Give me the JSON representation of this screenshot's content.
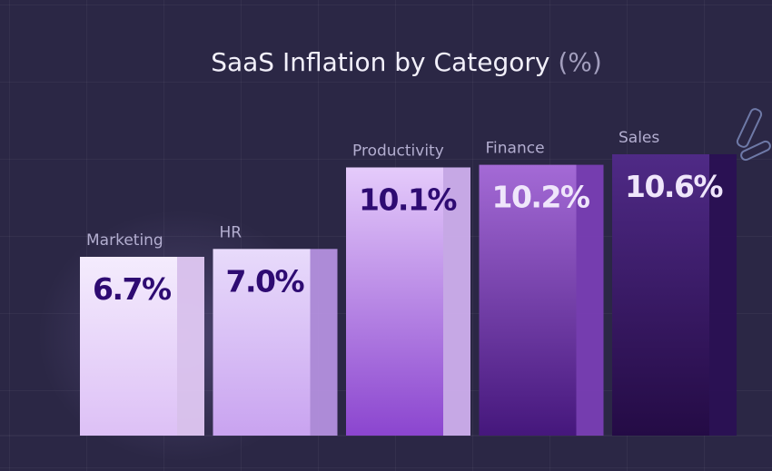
{
  "title": "SaaS Inflation by Category",
  "title_unit": "(%)",
  "chart_data": {
    "type": "bar",
    "title": "SaaS Inflation by Category (%)",
    "categories": [
      "Marketing",
      "HR",
      "Productivity",
      "Finance",
      "Sales"
    ],
    "values": [
      6.7,
      7.0,
      10.1,
      10.2,
      10.6
    ],
    "value_labels": [
      "6.7%",
      "7.0%",
      "10.1%",
      "10.2%",
      "10.6%"
    ],
    "xlabel": "",
    "ylabel": "",
    "ylim": [
      0,
      11.5
    ],
    "grid": true,
    "legend": "none",
    "colors": {
      "front_top": [
        "#f4ecfd",
        "#e8dbfb",
        "#e5cbfb",
        "#a46ad6",
        "#4f2a86"
      ],
      "front_bottom": [
        "#ddc0f6",
        "#c9a3f0",
        "#8b45cf",
        "#45177c",
        "#240b45"
      ],
      "side": [
        "#e6cdf9",
        "#b994e4",
        "#d4b3f3",
        "#7c3fb8",
        "#2a0f55"
      ],
      "value_text": [
        "#2e0b72",
        "#2e0b72",
        "#2e0b72",
        "#efe6fb",
        "#efe6fb"
      ]
    }
  }
}
